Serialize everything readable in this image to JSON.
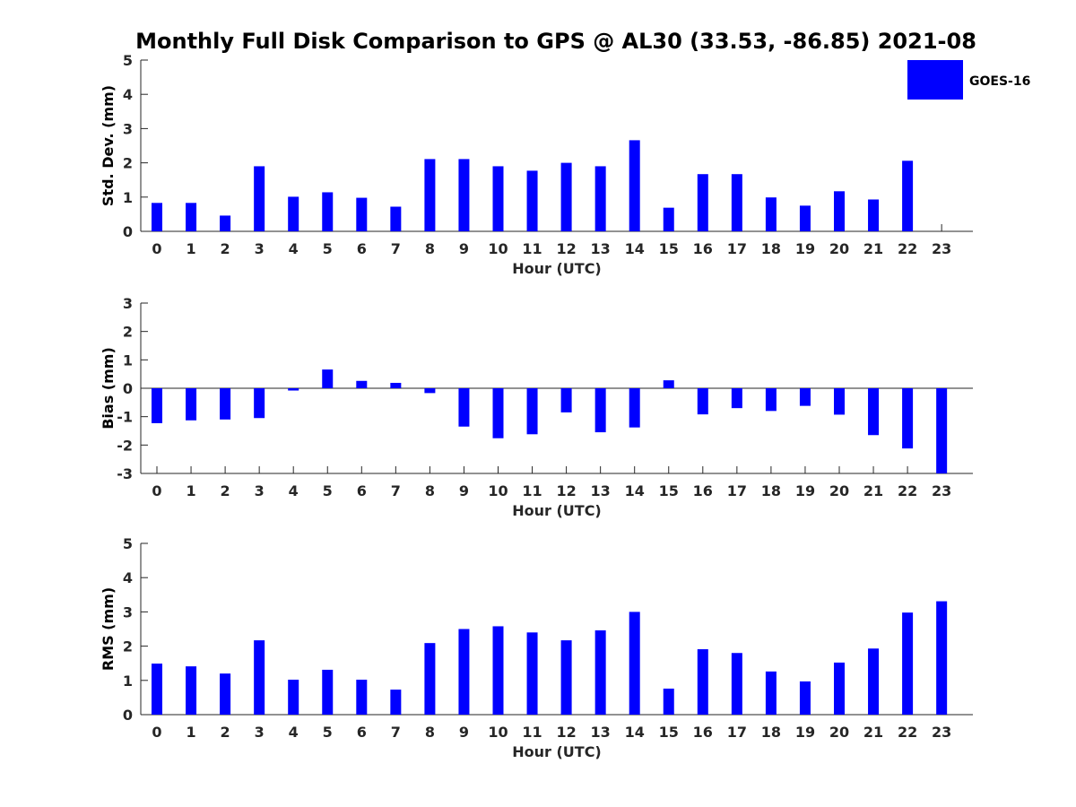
{
  "title": "Monthly Full Disk Comparison to GPS @ AL30 (33.53, -86.85) 2021-08",
  "legend": {
    "label": "GOES-16",
    "position": "top-right"
  },
  "colors": {
    "bar": "#0000ff",
    "axis": "#262626",
    "text": "#000000"
  },
  "chart_data": [
    {
      "type": "bar",
      "xlabel": "Hour (UTC)",
      "ylabel": "Std. Dev. (mm)",
      "ylim": [
        0,
        5
      ],
      "yticks": [
        0,
        1,
        2,
        3,
        4,
        5
      ],
      "categories": [
        "0",
        "1",
        "2",
        "3",
        "4",
        "5",
        "6",
        "7",
        "8",
        "9",
        "10",
        "11",
        "12",
        "13",
        "14",
        "15",
        "16",
        "17",
        "18",
        "19",
        "20",
        "21",
        "22",
        "23"
      ],
      "series": [
        {
          "name": "GOES-16",
          "values": [
            0.83,
            0.83,
            0.46,
            1.9,
            1.01,
            1.14,
            0.98,
            0.72,
            2.11,
            2.11,
            1.9,
            1.77,
            2.0,
            1.9,
            2.66,
            0.69,
            1.67,
            1.67,
            0.99,
            0.75,
            1.17,
            0.93,
            2.06,
            0.0
          ]
        }
      ]
    },
    {
      "type": "bar",
      "xlabel": "Hour (UTC)",
      "ylabel": "Bias (mm)",
      "ylim": [
        -3,
        3
      ],
      "yticks": [
        -3,
        -2,
        -1,
        0,
        1,
        2,
        3
      ],
      "categories": [
        "0",
        "1",
        "2",
        "3",
        "4",
        "5",
        "6",
        "7",
        "8",
        "9",
        "10",
        "11",
        "12",
        "13",
        "14",
        "15",
        "16",
        "17",
        "18",
        "19",
        "20",
        "21",
        "22",
        "23"
      ],
      "series": [
        {
          "name": "GOES-16",
          "values": [
            -1.23,
            -1.13,
            -1.1,
            -1.05,
            -0.08,
            0.66,
            0.26,
            0.19,
            -0.17,
            -1.35,
            -1.76,
            -1.62,
            -0.85,
            -1.55,
            -1.38,
            0.28,
            -0.92,
            -0.7,
            -0.8,
            -0.62,
            -0.93,
            -1.65,
            -2.12,
            -3.0
          ]
        }
      ]
    },
    {
      "type": "bar",
      "xlabel": "Hour (UTC)",
      "ylabel": "RMS (mm)",
      "ylim": [
        0,
        5
      ],
      "yticks": [
        0,
        1,
        2,
        3,
        4,
        5
      ],
      "categories": [
        "0",
        "1",
        "2",
        "3",
        "4",
        "5",
        "6",
        "7",
        "8",
        "9",
        "10",
        "11",
        "12",
        "13",
        "14",
        "15",
        "16",
        "17",
        "18",
        "19",
        "20",
        "21",
        "22",
        "23"
      ],
      "series": [
        {
          "name": "GOES-16",
          "values": [
            1.49,
            1.41,
            1.2,
            2.17,
            1.02,
            1.31,
            1.02,
            0.73,
            2.09,
            2.5,
            2.58,
            2.4,
            2.17,
            2.46,
            3.0,
            0.76,
            1.91,
            1.8,
            1.26,
            0.97,
            1.52,
            1.93,
            2.98,
            3.31
          ]
        }
      ]
    }
  ]
}
